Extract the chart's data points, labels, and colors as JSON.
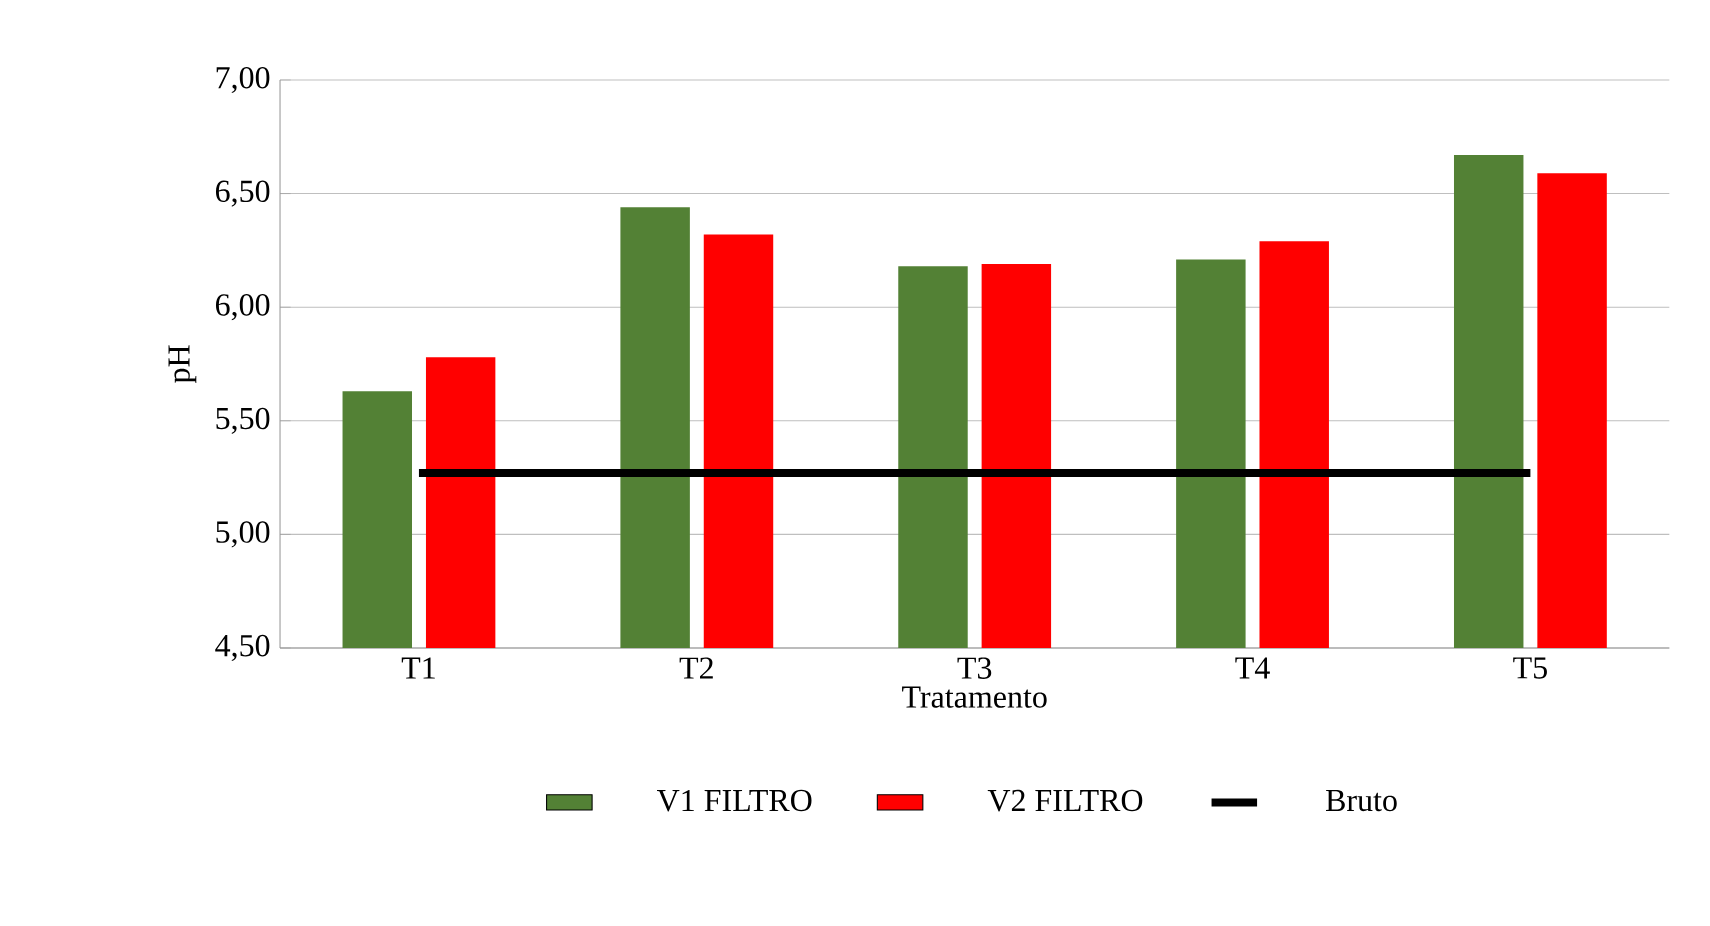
{
  "chart_data": {
    "type": "bar",
    "xlabel": "Tratamento",
    "ylabel": "pH",
    "categories": [
      "T1",
      "T2",
      "T3",
      "T4",
      "T5"
    ],
    "series": [
      {
        "name": "V1 FILTRO",
        "color": "#538135",
        "values": [
          5.63,
          6.44,
          6.18,
          6.21,
          6.67
        ]
      },
      {
        "name": "V2 FILTRO",
        "color": "#ff0000",
        "values": [
          5.78,
          6.32,
          6.19,
          6.29,
          6.59
        ]
      },
      {
        "name": "Bruto",
        "type": "line",
        "color": "#000000",
        "values": [
          5.27,
          5.27,
          5.27,
          5.27,
          5.27
        ]
      }
    ],
    "ylim": [
      4.5,
      7.0
    ],
    "yticks": [
      {
        "value": 4.5,
        "label": "4,50"
      },
      {
        "value": 5.0,
        "label": "5,00"
      },
      {
        "value": 5.5,
        "label": "5,50"
      },
      {
        "value": 6.0,
        "label": "6,00"
      },
      {
        "value": 6.5,
        "label": "6,50"
      },
      {
        "value": 7.0,
        "label": "7,00"
      }
    ],
    "grid": "y",
    "legend": "bottom"
  }
}
